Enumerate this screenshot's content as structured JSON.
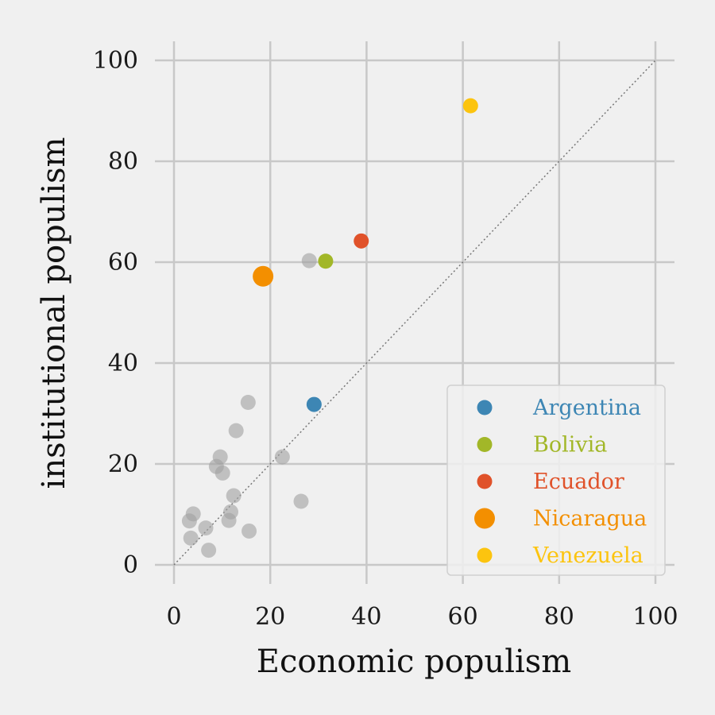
{
  "chart_data": {
    "type": "scatter",
    "xlabel": "Economic populism",
    "ylabel": "institutional populism",
    "xlim": [
      0,
      100
    ],
    "ylim": [
      0,
      100
    ],
    "x_ticks": [
      "0",
      "20",
      "40",
      "60",
      "80",
      "100"
    ],
    "y_ticks": [
      "0",
      "20",
      "40",
      "60",
      "80",
      "100"
    ],
    "grid": true,
    "reference_line": "y = x (dotted)",
    "legend_position": "bottom-right",
    "background_points": [
      {
        "x": 3.2,
        "y": 8.7
      },
      {
        "x": 4.0,
        "y": 10.1
      },
      {
        "x": 3.5,
        "y": 5.3
      },
      {
        "x": 6.6,
        "y": 7.3
      },
      {
        "x": 7.2,
        "y": 2.9
      },
      {
        "x": 8.8,
        "y": 19.5
      },
      {
        "x": 9.6,
        "y": 21.4
      },
      {
        "x": 10.1,
        "y": 18.2
      },
      {
        "x": 11.4,
        "y": 8.8
      },
      {
        "x": 11.8,
        "y": 10.5
      },
      {
        "x": 12.4,
        "y": 13.7
      },
      {
        "x": 12.9,
        "y": 26.6
      },
      {
        "x": 15.4,
        "y": 32.2
      },
      {
        "x": 15.6,
        "y": 6.7
      },
      {
        "x": 22.5,
        "y": 21.4
      },
      {
        "x": 26.4,
        "y": 12.6
      },
      {
        "x": 28.1,
        "y": 60.3
      }
    ],
    "series": [
      {
        "name": "Argentina",
        "x": 29.1,
        "y": 31.8,
        "color": "#3d86b4",
        "size": "small"
      },
      {
        "name": "Bolivia",
        "x": 31.5,
        "y": 60.2,
        "color": "#a2b728",
        "size": "small"
      },
      {
        "name": "Ecuador",
        "x": 38.9,
        "y": 64.2,
        "color": "#e0522a",
        "size": "small"
      },
      {
        "name": "Nicaragua",
        "x": 18.5,
        "y": 57.2,
        "color": "#f38f00",
        "size": "large"
      },
      {
        "name": "Venezuela",
        "x": 61.6,
        "y": 91.0,
        "color": "#fcc40f",
        "size": "small"
      }
    ],
    "colors": {
      "background_points": "#a0a0a0",
      "grid": "#c8c8c8",
      "reference_line": "#777777"
    }
  }
}
